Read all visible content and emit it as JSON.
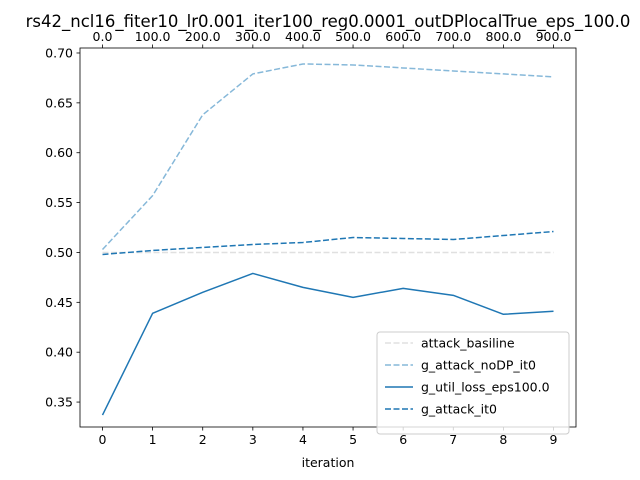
{
  "chart_data": {
    "type": "line",
    "title": "rs42_ncl16_fiter10_lr0.001_iter100_reg0.0001_outDPlocalTrue_eps_100.0",
    "xlabel": "iteration",
    "ylabel": "",
    "x": [
      0,
      1,
      2,
      3,
      4,
      5,
      6,
      7,
      8,
      9
    ],
    "x_ticks": [
      "0",
      "1",
      "2",
      "3",
      "4",
      "5",
      "6",
      "7",
      "8",
      "9"
    ],
    "x_top_ticks": [
      "0.0",
      "100.0",
      "200.0",
      "300.0",
      "400.0",
      "500.0",
      "600.0",
      "700.0",
      "800.0",
      "900.0"
    ],
    "ylim": [
      0.325,
      0.705
    ],
    "y_ticks": [
      0.35,
      0.4,
      0.45,
      0.5,
      0.55,
      0.6,
      0.65,
      0.7
    ],
    "y_tick_labels": [
      "0.35",
      "0.40",
      "0.45",
      "0.50",
      "0.55",
      "0.60",
      "0.65",
      "0.70"
    ],
    "grid": false,
    "legend_position": "lower-right",
    "series": [
      {
        "name": "attack_basiline",
        "color": "#e0e0e0",
        "style": "dashed",
        "values": [
          0.5,
          0.5,
          0.5,
          0.5,
          0.5,
          0.5,
          0.5,
          0.5,
          0.5,
          0.5
        ]
      },
      {
        "name": "g_attack_noDP_it0",
        "color": "#86b8d9",
        "style": "dashed",
        "values": [
          0.503,
          0.557,
          0.638,
          0.679,
          0.689,
          0.688,
          0.685,
          0.682,
          0.679,
          0.676
        ]
      },
      {
        "name": "g_util_loss_eps100.0",
        "color": "#1f77b4",
        "style": "solid",
        "values": [
          0.337,
          0.439,
          0.46,
          0.479,
          0.465,
          0.455,
          0.464,
          0.457,
          0.438,
          0.441
        ]
      },
      {
        "name": "g_attack_it0",
        "color": "#1f77b4",
        "style": "dashed",
        "values": [
          0.498,
          0.502,
          0.505,
          0.508,
          0.51,
          0.515,
          0.514,
          0.513,
          0.517,
          0.521
        ]
      }
    ]
  }
}
